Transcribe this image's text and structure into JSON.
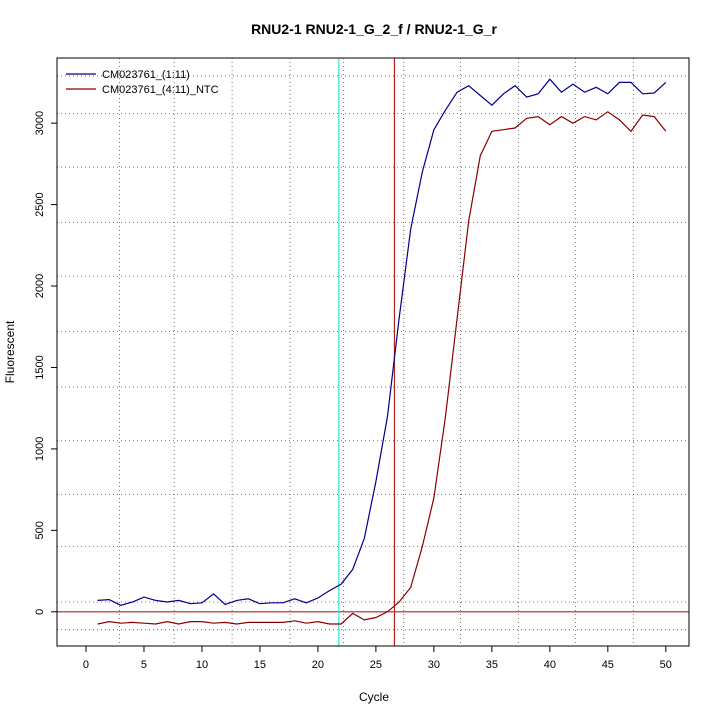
{
  "chart_data": {
    "type": "line",
    "title": "RNU2-1  RNU2-1_G_2_f / RNU2-1_G_r",
    "xlabel": "Cycle",
    "ylabel": "Fluorescent",
    "xlim": [
      -2.5,
      52
    ],
    "ylim": [
      -210,
      3400
    ],
    "x_ticks": [
      0,
      5,
      10,
      15,
      20,
      25,
      30,
      35,
      40,
      45,
      50
    ],
    "y_ticks": [
      0,
      500,
      1000,
      1500,
      2000,
      2500,
      3000
    ],
    "grid": true,
    "legend_position": "top-left",
    "threshold_y": 0,
    "threshold_color": "#b22222",
    "vlines": [
      {
        "x": 21.8,
        "color": "#40e0d0"
      },
      {
        "x": 26.6,
        "color": "#b22222"
      }
    ],
    "vgrid_x": [
      2.9,
      7.6,
      12.6,
      17.6,
      22.2,
      27.4,
      32.3,
      37.3,
      42.2,
      47.2
    ],
    "hgrid_y": [
      -110,
      60,
      400,
      720,
      1050,
      1380,
      1720,
      2060,
      2390,
      2730,
      3060,
      3290
    ],
    "x": [
      1,
      2,
      3,
      4,
      5,
      6,
      7,
      8,
      9,
      10,
      11,
      12,
      13,
      14,
      15,
      16,
      17,
      18,
      19,
      20,
      21,
      22,
      23,
      24,
      25,
      26,
      27,
      28,
      29,
      30,
      31,
      32,
      33,
      34,
      35,
      36,
      37,
      38,
      39,
      40,
      41,
      42,
      43,
      44,
      45,
      46,
      47,
      48,
      49,
      50
    ],
    "series": [
      {
        "name": "CM023761_(1:11)",
        "color": "#00008b",
        "values": [
          70,
          75,
          40,
          60,
          90,
          70,
          60,
          70,
          50,
          55,
          110,
          45,
          70,
          80,
          50,
          55,
          55,
          80,
          55,
          85,
          130,
          170,
          260,
          450,
          800,
          1200,
          1800,
          2350,
          2700,
          2960,
          3080,
          3190,
          3230,
          3170,
          3110,
          3180,
          3230,
          3160,
          3180,
          3270,
          3190,
          3240,
          3190,
          3220,
          3180,
          3250,
          3250,
          3180,
          3185,
          3250
        ]
      },
      {
        "name": "CM023761_(4:11)_NTC",
        "color": "#8b0000",
        "values": [
          -75,
          -60,
          -70,
          -65,
          -70,
          -75,
          -60,
          -75,
          -60,
          -60,
          -70,
          -65,
          -75,
          -65,
          -65,
          -65,
          -65,
          -55,
          -70,
          -60,
          -75,
          -75,
          -10,
          -50,
          -35,
          0,
          60,
          150,
          400,
          700,
          1200,
          1800,
          2400,
          2800,
          2950,
          2960,
          2970,
          3030,
          3040,
          2990,
          3040,
          3000,
          3040,
          3020,
          3070,
          3020,
          2950,
          3050,
          3040,
          2950
        ]
      }
    ]
  }
}
